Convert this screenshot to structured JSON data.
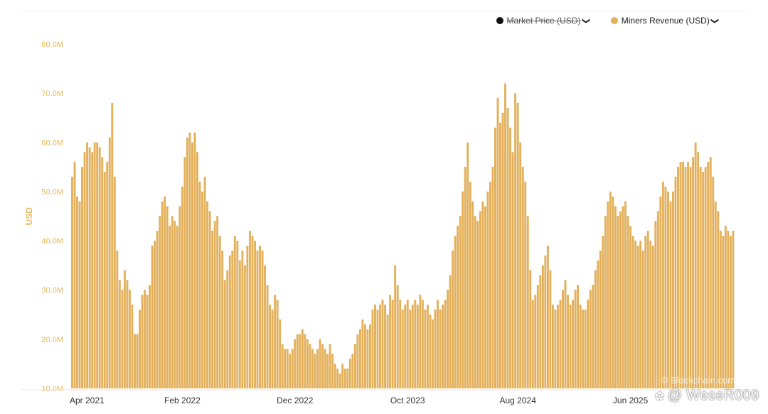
{
  "legend": {
    "market_price": {
      "label": "Market Price (USD)",
      "color": "#111111",
      "enabled": false
    },
    "miners_revenue": {
      "label": "Miners Revenue (USD)",
      "color": "#e3b05b",
      "enabled": true
    },
    "chevron": "❯"
  },
  "watermark": {
    "site": "© Blockchain.com",
    "handle": "@ WeseR009"
  },
  "colors": {
    "bar": "#e3b05b",
    "axis_text": "#e8b85c",
    "baseline": "#e6e6e6"
  },
  "chart_data": {
    "type": "bar",
    "ylabel": "USD",
    "ylim": [
      10,
      80
    ],
    "y_unit": "M",
    "y_ticks": [
      "10.0M",
      "20.0M",
      "30.0M",
      "40.0M",
      "50.0M",
      "60.0M",
      "70.0M",
      "80.0M"
    ],
    "x_ticks": [
      "Apr 2021",
      "Feb 2022",
      "Dec 2022",
      "Oct 2023",
      "Aug 2024",
      "Jun 2025"
    ],
    "x_tick_index": [
      0,
      44,
      89,
      134,
      178,
      223
    ],
    "series": [
      {
        "name": "Miners Revenue (USD)",
        "values": [
          53,
          56,
          49,
          48,
          55,
          58,
          60,
          59,
          58,
          60,
          60,
          59,
          57,
          54,
          56,
          61,
          68,
          53,
          38,
          32,
          30,
          34,
          32,
          30,
          27,
          21,
          21,
          26,
          29,
          30,
          29,
          31,
          39,
          40,
          42,
          45,
          48,
          49,
          47,
          43,
          45,
          44,
          43,
          47,
          51,
          57,
          61,
          62,
          60,
          62,
          58,
          52,
          50,
          53,
          48,
          46,
          42,
          44,
          45,
          41,
          38,
          32,
          34,
          37,
          38,
          41,
          40,
          36,
          38,
          35,
          39,
          42,
          41,
          40,
          38,
          39,
          38,
          35,
          31,
          27,
          26,
          29,
          28,
          24,
          19,
          18,
          18,
          17,
          18,
          20,
          21,
          21,
          22,
          21,
          20,
          19,
          18,
          17,
          18,
          20,
          19,
          18,
          17,
          19,
          17,
          15,
          14,
          13,
          15,
          14,
          14,
          16,
          17,
          19,
          21,
          22,
          24,
          23,
          22,
          23,
          26,
          27,
          26,
          27,
          28,
          27,
          25,
          29,
          28,
          35,
          31,
          28,
          26,
          27,
          28,
          26,
          27,
          28,
          27,
          29,
          28,
          26,
          27,
          25,
          24,
          26,
          28,
          26,
          27,
          28,
          30,
          33,
          38,
          41,
          43,
          45,
          50,
          55,
          60,
          52,
          48,
          45,
          44,
          46,
          48,
          47,
          50,
          52,
          55,
          63,
          69,
          64,
          66,
          72,
          67,
          63,
          58,
          70,
          68,
          60,
          55,
          52,
          45,
          34,
          28,
          29,
          31,
          33,
          35,
          37,
          39,
          34,
          27,
          26,
          27,
          28,
          30,
          32,
          29,
          27,
          28,
          30,
          31,
          27,
          26,
          26,
          28,
          30,
          31,
          34,
          36,
          38,
          41,
          45,
          48,
          50,
          49,
          47,
          45,
          46,
          47,
          48,
          45,
          43,
          41,
          40,
          39,
          40,
          38,
          41,
          42,
          40,
          39,
          44,
          46,
          49,
          52,
          51,
          50,
          48,
          50,
          53,
          55,
          56,
          56,
          55,
          56,
          55,
          57,
          60,
          58,
          55,
          54,
          55,
          56,
          57,
          53,
          48,
          46,
          42,
          41,
          43,
          42,
          41,
          42
        ]
      }
    ]
  }
}
